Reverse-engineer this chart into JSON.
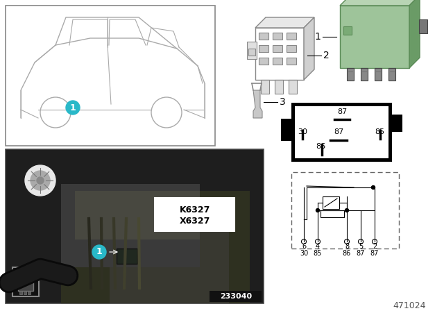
{
  "bg_color": "#ffffff",
  "relay_green": "#9ec49a",
  "relay_green_dark": "#7aab76",
  "relay_green_side": "#6a9b66",
  "cyan_color": "#29b8c8",
  "dark_gray": "#555555",
  "light_gray": "#cccccc",
  "med_gray": "#999999",
  "car_line_color": "#aaaaaa",
  "part_numbers": [
    "K6327",
    "X6327"
  ],
  "photo_label": "233040",
  "diagram_id": "471024"
}
